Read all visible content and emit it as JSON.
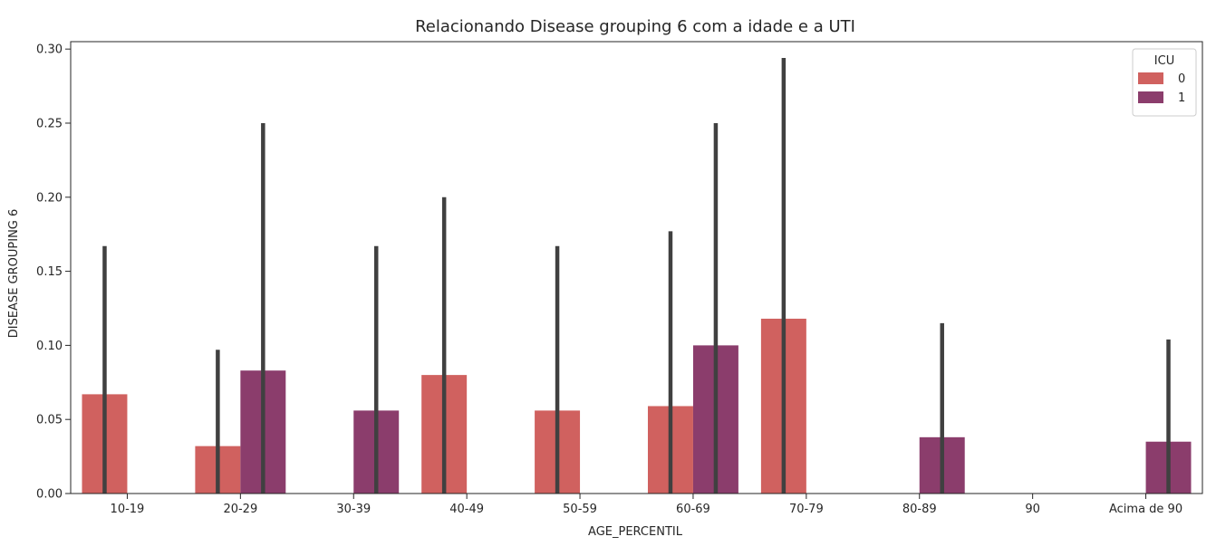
{
  "chart_data": {
    "type": "bar",
    "title": "Relacionando Disease grouping 6 com a idade e a UTI",
    "xlabel": "AGE_PERCENTIL",
    "ylabel": "DISEASE GROUPING 6",
    "ylim": [
      0,
      0.305
    ],
    "yticks": [
      0.0,
      0.05,
      0.1,
      0.15,
      0.2,
      0.25,
      0.3
    ],
    "ytick_labels": [
      "0.00",
      "0.05",
      "0.10",
      "0.15",
      "0.20",
      "0.25",
      "0.30"
    ],
    "categories": [
      "10-19",
      "20-29",
      "30-39",
      "40-49",
      "50-59",
      "60-69",
      "70-79",
      "80-89",
      "90",
      "Acima de 90"
    ],
    "series": [
      {
        "name": "0",
        "color": "#d0615f",
        "values": [
          0.067,
          0.032,
          null,
          0.08,
          0.056,
          0.059,
          0.118,
          null,
          null,
          null
        ],
        "ci_high": [
          0.167,
          0.097,
          null,
          0.2,
          0.167,
          0.177,
          0.294,
          null,
          null,
          null
        ]
      },
      {
        "name": "1",
        "color": "#8b3d6c",
        "values": [
          null,
          0.083,
          0.056,
          null,
          null,
          0.1,
          null,
          0.038,
          null,
          0.035
        ],
        "ci_high": [
          null,
          0.25,
          0.167,
          null,
          null,
          0.25,
          null,
          0.115,
          null,
          0.104
        ]
      }
    ],
    "legend": {
      "title": "ICU",
      "position": "top-right"
    },
    "errorbar_color": "#404040",
    "grid": false
  }
}
